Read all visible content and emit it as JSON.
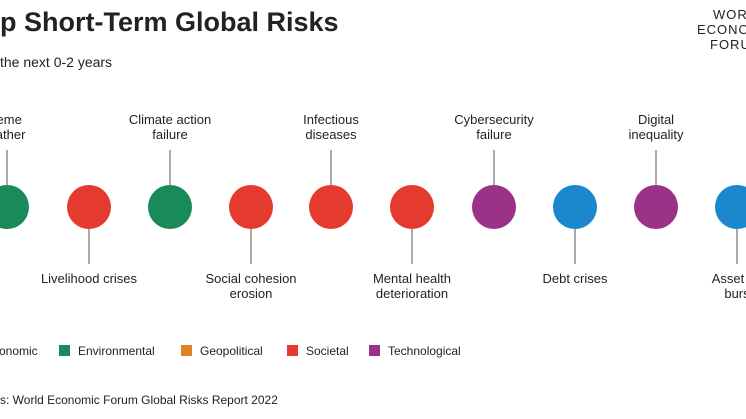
{
  "header": {
    "title": "p Short-Term Global Risks",
    "subtitle": "the next 0-2 years",
    "logo": [
      "WOR",
      "ECONO",
      "FORU"
    ]
  },
  "nodes": [
    {
      "label": [
        "reme",
        "eather"
      ],
      "color": "#1b8a5a"
    },
    {
      "label": [
        "Livelihood crises"
      ],
      "color": "#e53b2e"
    },
    {
      "label": [
        "Climate action",
        "failure"
      ],
      "color": "#1b8a5a"
    },
    {
      "label": [
        "Social cohesion",
        "erosion"
      ],
      "color": "#e53b2e"
    },
    {
      "label": [
        "Infectious",
        "diseases"
      ],
      "color": "#e53b2e"
    },
    {
      "label": [
        "Mental health",
        "deterioration"
      ],
      "color": "#e53b2e"
    },
    {
      "label": [
        "Cybersecurity",
        "failure"
      ],
      "color": "#9a3387"
    },
    {
      "label": [
        "Debt crises"
      ],
      "color": "#1b87cc"
    },
    {
      "label": [
        "Digital",
        "inequality"
      ],
      "color": "#9a3387"
    },
    {
      "label": [
        "Asset bu",
        "burs"
      ],
      "color": "#1b87cc"
    }
  ],
  "legend": [
    {
      "label": "onomic",
      "color": "#1b87cc"
    },
    {
      "label": "Environmental",
      "color": "#1b8a5a"
    },
    {
      "label": "Geopolitical",
      "color": "#e0821f"
    },
    {
      "label": "Societal",
      "color": "#e53b2e"
    },
    {
      "label": "Technological",
      "color": "#9a3387"
    }
  ],
  "source": "s: World Economic Forum Global Risks Report 2022"
}
